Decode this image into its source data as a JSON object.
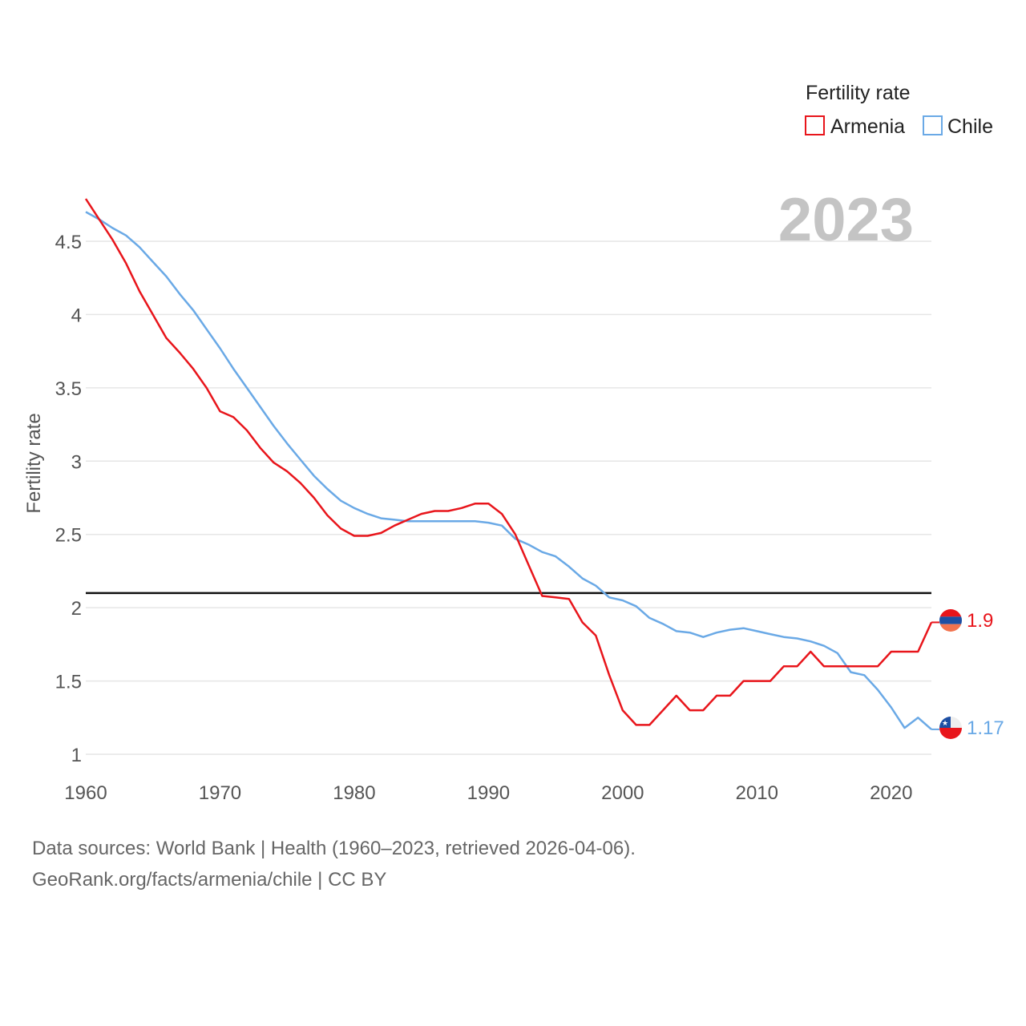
{
  "chart_data": {
    "type": "line",
    "year_label": "2023",
    "ylabel": "Fertility rate",
    "xlabel": "",
    "xlim": [
      1960,
      2023
    ],
    "ylim": [
      1,
      4.5
    ],
    "x_ticks": [
      1960,
      1970,
      1980,
      1990,
      2000,
      2010,
      2020
    ],
    "y_ticks": [
      1,
      1.5,
      2,
      2.5,
      3,
      3.5,
      4,
      4.5
    ],
    "y_tick_labels": [
      "1",
      "1.5",
      "2",
      "2.5",
      "3",
      "3.5",
      "4",
      "4.5"
    ],
    "x_tick_labels": [
      "1960",
      "1970",
      "1980",
      "1990",
      "2000",
      "2010",
      "2020"
    ],
    "reference_line": {
      "value": 2.1,
      "color": "#111111"
    },
    "legend": {
      "title": "Fertility rate",
      "position": "top-right"
    },
    "x": [
      1960,
      1961,
      1962,
      1963,
      1964,
      1965,
      1966,
      1967,
      1968,
      1969,
      1970,
      1971,
      1972,
      1973,
      1974,
      1975,
      1976,
      1977,
      1978,
      1979,
      1980,
      1981,
      1982,
      1983,
      1984,
      1985,
      1986,
      1987,
      1988,
      1989,
      1990,
      1991,
      1992,
      1993,
      1994,
      1995,
      1996,
      1997,
      1998,
      1999,
      2000,
      2001,
      2002,
      2003,
      2004,
      2005,
      2006,
      2007,
      2008,
      2009,
      2010,
      2011,
      2012,
      2013,
      2014,
      2015,
      2016,
      2017,
      2018,
      2019,
      2020,
      2021,
      2022,
      2023
    ],
    "series": [
      {
        "name": "Armenia",
        "color": "#e8151b",
        "end_label": "1.9",
        "flag": "armenia",
        "values": [
          4.79,
          4.65,
          4.51,
          4.35,
          4.16,
          4.0,
          3.84,
          3.74,
          3.63,
          3.5,
          3.34,
          3.3,
          3.21,
          3.09,
          2.99,
          2.93,
          2.85,
          2.75,
          2.63,
          2.54,
          2.49,
          2.49,
          2.51,
          2.56,
          2.6,
          2.64,
          2.66,
          2.66,
          2.68,
          2.71,
          2.71,
          2.64,
          2.5,
          2.29,
          2.08,
          2.07,
          2.06,
          1.9,
          1.81,
          1.54,
          1.3,
          1.2,
          1.2,
          1.3,
          1.4,
          1.3,
          1.3,
          1.4,
          1.4,
          1.5,
          1.5,
          1.5,
          1.6,
          1.6,
          1.7,
          1.6,
          1.6,
          1.6,
          1.6,
          1.6,
          1.7,
          1.7,
          1.7,
          1.9
        ]
      },
      {
        "name": "Chile",
        "color": "#6aa9e6",
        "end_label": "1.17",
        "flag": "chile",
        "values": [
          4.7,
          4.65,
          4.59,
          4.54,
          4.46,
          4.36,
          4.26,
          4.14,
          4.03,
          3.9,
          3.77,
          3.63,
          3.5,
          3.37,
          3.24,
          3.12,
          3.01,
          2.9,
          2.81,
          2.73,
          2.68,
          2.64,
          2.61,
          2.6,
          2.59,
          2.59,
          2.59,
          2.59,
          2.59,
          2.59,
          2.58,
          2.56,
          2.47,
          2.43,
          2.38,
          2.35,
          2.28,
          2.2,
          2.15,
          2.07,
          2.05,
          2.01,
          1.93,
          1.89,
          1.84,
          1.83,
          1.8,
          1.83,
          1.85,
          1.86,
          1.84,
          1.82,
          1.8,
          1.79,
          1.77,
          1.74,
          1.69,
          1.56,
          1.54,
          1.44,
          1.32,
          1.18,
          1.25,
          1.17
        ]
      }
    ]
  },
  "footer": {
    "source_line": "Data sources: World Bank | Health (1960–2023, retrieved 2026-04-06).",
    "credit_line": "GeoRank.org/facts/armenia/chile | CC BY"
  }
}
